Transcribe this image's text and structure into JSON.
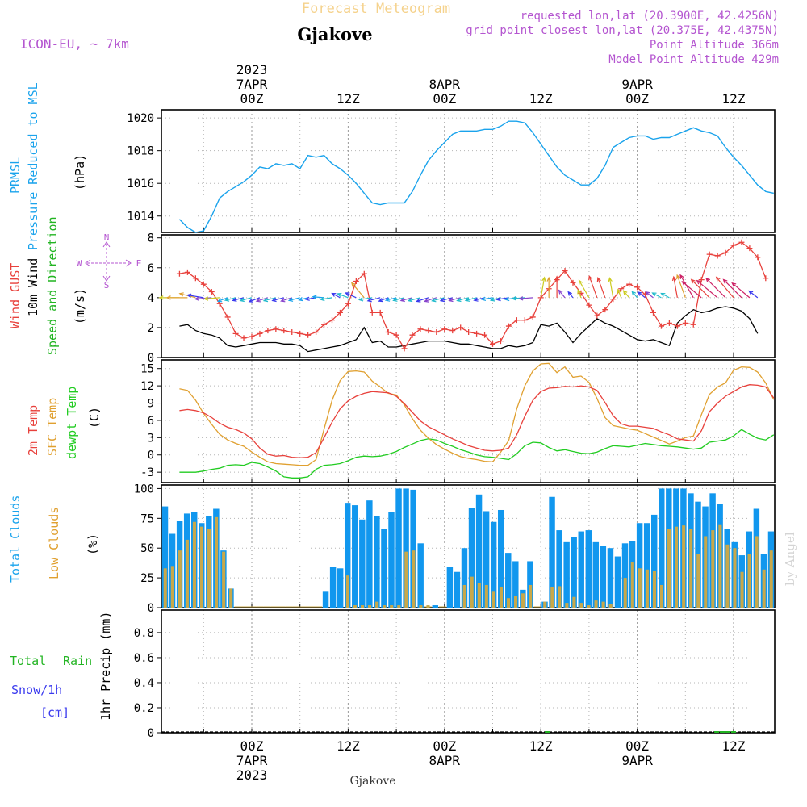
{
  "header": {
    "super_title": "Forecast Meteogram",
    "location": "Gjakove",
    "model": "ICON-EU, ~ 7km",
    "info_lines": [
      "requested lon,lat (20.3900E, 42.4256N)",
      "grid point closest lon,lat (20.375E, 42.4375N)",
      "Point Altitude 366m",
      "Model Point Altitude 429m"
    ],
    "watermark": "by Angel",
    "footer_location": "Gjakove"
  },
  "time_axis": {
    "top_year": "2023",
    "top_labels": [
      {
        "t": 0,
        "lines": [
          "7APR",
          "00Z"
        ]
      },
      {
        "t": 12,
        "lines": [
          "12Z"
        ]
      },
      {
        "t": 24,
        "lines": [
          "8APR",
          "00Z"
        ]
      },
      {
        "t": 36,
        "lines": [
          "12Z"
        ]
      },
      {
        "t": 48,
        "lines": [
          "9APR",
          "00Z"
        ]
      },
      {
        "t": 60,
        "lines": [
          "12Z"
        ]
      }
    ],
    "bottom_labels": [
      {
        "t": 0,
        "lines": [
          "00Z",
          "7APR",
          "2023"
        ]
      },
      {
        "t": 12,
        "lines": [
          "12Z"
        ]
      },
      {
        "t": 24,
        "lines": [
          "00Z",
          "8APR"
        ]
      },
      {
        "t": 36,
        "lines": [
          "12Z"
        ]
      },
      {
        "t": 48,
        "lines": [
          "00Z",
          "9APR"
        ]
      },
      {
        "t": 60,
        "lines": [
          "12Z"
        ]
      }
    ]
  },
  "colors": {
    "prmsl": "#1aa3ec",
    "gust": "#e8413c",
    "wind10": "#000000",
    "wind_dir_label": "#22b422",
    "temp2m": "#e8413c",
    "sfc_temp": "#e0a030",
    "dewpt": "#22cc22",
    "total_clouds": "#1197ee",
    "low_clouds": "#c8a84a",
    "rain": "#22b422",
    "snow": "#3a3aee",
    "purple": "#b455d0",
    "header_orange": "#f5d28c"
  },
  "panel_labels": {
    "prmsl": [
      "PRMSL",
      "Pressure Reduced to MSL"
    ],
    "prmsl_unit": "(hPa)",
    "wind": [
      "Wind GUST",
      "10m Wind",
      "Speed and Direction"
    ],
    "wind_unit": "(m/s)",
    "compass": {
      "n": "N",
      "s": "S",
      "w": "W",
      "e": "E"
    },
    "temp": [
      "2m Temp",
      "SFC Temp",
      "dewpt Temp"
    ],
    "temp_unit": "(C)",
    "clouds": [
      "Total Clouds",
      "Low Clouds"
    ],
    "clouds_unit": "(%)",
    "precip_left": [
      "Total",
      "Rain"
    ],
    "precip_left2": [
      "Snow/1h",
      "[cm]"
    ],
    "precip_unit": "1hr Precip (mm)"
  },
  "chart_data": [
    {
      "type": "line",
      "title": "PRMSL Pressure Reduced to MSL",
      "ylabel": "(hPa)",
      "ylim": [
        1013,
        1020.5
      ],
      "yticks": [
        1014,
        1016,
        1018,
        1020
      ],
      "x_hours": [
        -9,
        -8,
        -7,
        -6,
        -5,
        -4,
        -3,
        -2,
        -1,
        0,
        1,
        2,
        3,
        4,
        5,
        6,
        7,
        8,
        9,
        10,
        11,
        12,
        13,
        14,
        15,
        16,
        17,
        18,
        19,
        20,
        21,
        22,
        23,
        24,
        25,
        26,
        27,
        28,
        29,
        30,
        31,
        32,
        33,
        34,
        35,
        36,
        37,
        38,
        39,
        40,
        41,
        42,
        43,
        44,
        45,
        46,
        47,
        48,
        49,
        50,
        51,
        52,
        53,
        54,
        55,
        56,
        57,
        58,
        59,
        60,
        61,
        62,
        63,
        64,
        65
      ],
      "series": [
        {
          "values": [
            1013.8,
            1013.3,
            1013.0,
            1013.1,
            1014.0,
            1015.1,
            1015.5,
            1015.8,
            1016.1,
            1016.5,
            1017.0,
            1016.9,
            1017.2,
            1017.1,
            1017.2,
            1016.9,
            1017.7,
            1017.6,
            1017.7,
            1017.2,
            1016.9,
            1016.5,
            1016.0,
            1015.4,
            1014.8,
            1014.7,
            1014.8,
            1014.8,
            1014.8,
            1015.5,
            1016.5,
            1017.4,
            1018.0,
            1018.5,
            1019.0,
            1019.2,
            1019.2,
            1019.2,
            1019.3,
            1019.3,
            1019.5,
            1019.8,
            1019.8,
            1019.7,
            1019.1,
            1018.4,
            1017.7,
            1017.0,
            1016.5,
            1016.2,
            1015.9,
            1015.9,
            1016.3,
            1017.1,
            1018.2,
            1018.5,
            1018.8,
            1018.9,
            1018.9,
            1018.7,
            1018.8,
            1018.8,
            1019.0,
            1019.2,
            1019.4,
            1019.2,
            1019.1,
            1018.9,
            1018.2,
            1017.6,
            1017.1,
            1016.5,
            1015.9,
            1015.5,
            1015.4
          ]
        }
      ]
    },
    {
      "type": "line",
      "title": "Wind GUST / 10m Wind Speed and Direction",
      "ylabel": "(m/s)",
      "ylim": [
        0,
        8.2
      ],
      "yticks": [
        0,
        2,
        4,
        6,
        8
      ],
      "series": [
        {
          "name": "Wind GUST",
          "values": [
            5.6,
            5.7,
            5.3,
            4.9,
            4.4,
            3.6,
            2.7,
            1.6,
            1.3,
            1.4,
            1.6,
            1.8,
            1.9,
            1.8,
            1.7,
            1.6,
            1.5,
            1.7,
            2.2,
            2.5,
            3.0,
            3.6,
            5.1,
            5.6,
            3.0,
            3.0,
            1.7,
            1.5,
            0.6,
            1.5,
            1.9,
            1.8,
            1.7,
            1.9,
            1.8,
            2.0,
            1.7,
            1.6,
            1.5,
            0.9,
            1.1,
            2.1,
            2.5,
            2.5,
            2.7,
            4.0,
            4.6,
            5.2,
            5.8,
            5.0,
            4.3,
            3.5,
            2.8,
            3.2,
            3.9,
            4.6,
            4.9,
            4.7,
            4.2,
            3.0,
            2.1,
            2.3,
            2.1,
            2.3,
            2.2,
            5.2,
            6.9,
            6.8,
            7.0,
            7.5,
            7.7,
            7.3,
            6.7,
            5.3
          ]
        },
        {
          "name": "10m Wind",
          "values": [
            2.1,
            2.2,
            1.8,
            1.6,
            1.5,
            1.3,
            0.8,
            0.7,
            0.8,
            0.9,
            1.0,
            1.0,
            1.0,
            0.9,
            0.9,
            0.8,
            0.4,
            0.5,
            0.6,
            0.7,
            0.8,
            1.0,
            1.2,
            2.0,
            1.0,
            1.1,
            0.7,
            0.7,
            0.8,
            0.9,
            1.0,
            1.1,
            1.1,
            1.1,
            1.0,
            0.9,
            0.9,
            0.8,
            0.7,
            0.6,
            0.6,
            0.8,
            0.7,
            0.8,
            1.0,
            2.2,
            2.1,
            2.3,
            1.7,
            1.0,
            1.6,
            2.1,
            2.6,
            2.3,
            2.1,
            1.8,
            1.5,
            1.2,
            1.1,
            1.2,
            1.0,
            0.8,
            2.3,
            2.8,
            3.2,
            3.0,
            3.1,
            3.3,
            3.4,
            3.3,
            3.1,
            2.6,
            1.6
          ]
        }
      ],
      "direction_arrows": {
        "baseline_ms": 4,
        "note": "arrows drawn at the 4 m/s level, colored by speed",
        "angles_deg": [
          180,
          180,
          210,
          200,
          170,
          170,
          140,
          150,
          150,
          150,
          140,
          145,
          150,
          150,
          145,
          150,
          150,
          160,
          190,
          160,
          230,
          220,
          225,
          230,
          160,
          150,
          140,
          150,
          150,
          150,
          150,
          145,
          145,
          150,
          150,
          150,
          150,
          150,
          150,
          160,
          150,
          160,
          160,
          170,
          170,
          280,
          270,
          270,
          250,
          250,
          260,
          240,
          250,
          250,
          260,
          260,
          250,
          250,
          240,
          240,
          230,
          230,
          260,
          250,
          240,
          220,
          225,
          220,
          225,
          230,
          225,
          220,
          240,
          250
        ]
      }
    },
    {
      "type": "line",
      "title": "2m Temp / SFC Temp / dewpt Temp",
      "ylabel": "(C)",
      "ylim": [
        -4.8,
        16.5
      ],
      "yticks": [
        -3,
        0,
        3,
        6,
        9,
        12,
        15
      ],
      "series": [
        {
          "name": "2m Temp",
          "values": [
            7.7,
            7.9,
            7.7,
            7.3,
            6.5,
            5.5,
            4.8,
            4.4,
            3.8,
            2.8,
            1.2,
            0.1,
            -0.2,
            -0.1,
            -0.4,
            -0.5,
            -0.4,
            0.4,
            3.0,
            5.7,
            8.0,
            9.4,
            10.2,
            10.7,
            11.0,
            10.9,
            10.8,
            10.2,
            8.9,
            7.4,
            5.9,
            4.9,
            4.2,
            3.5,
            2.8,
            2.2,
            1.6,
            1.2,
            0.8,
            0.7,
            0.8,
            1.2,
            3.5,
            6.7,
            9.5,
            11.0,
            11.6,
            11.7,
            11.9,
            11.8,
            12.0,
            11.8,
            11.2,
            9.1,
            6.8,
            5.4,
            5.0,
            5.0,
            4.8,
            4.6,
            4.0,
            3.5,
            2.8,
            2.6,
            2.4,
            4.2,
            7.5,
            9.0,
            10.2,
            11.0,
            11.8,
            12.2,
            12.1,
            11.8,
            9.9
          ]
        },
        {
          "name": "SFC Temp",
          "values": [
            11.5,
            11.2,
            9.5,
            7.2,
            5.3,
            3.6,
            2.6,
            2.0,
            1.5,
            0.5,
            -0.4,
            -1.2,
            -1.5,
            -1.6,
            -1.7,
            -1.8,
            -1.8,
            -0.8,
            4.5,
            9.5,
            12.9,
            14.5,
            14.6,
            14.4,
            12.8,
            11.8,
            10.7,
            10.4,
            8.7,
            6.3,
            4.3,
            2.9,
            1.8,
            1.0,
            0.3,
            -0.3,
            -0.6,
            -0.8,
            -1.1,
            -1.2,
            0.5,
            2.5,
            8.0,
            12.0,
            14.6,
            15.8,
            15.9,
            14.3,
            15.3,
            13.5,
            13.7,
            12.6,
            9.8,
            6.5,
            5.1,
            4.8,
            4.5,
            4.3,
            3.7,
            3.1,
            2.5,
            1.9,
            2.4,
            3.0,
            3.3,
            7.0,
            10.5,
            11.8,
            12.5,
            14.7,
            15.3,
            15.2,
            14.4,
            12.5,
            9.6
          ]
        },
        {
          "name": "dewpt Temp",
          "values": [
            -3.0,
            -3.0,
            -3.0,
            -2.8,
            -2.5,
            -2.3,
            -1.8,
            -1.7,
            -1.8,
            -1.3,
            -1.5,
            -2.1,
            -2.8,
            -3.8,
            -4.0,
            -4.0,
            -3.8,
            -2.5,
            -1.8,
            -1.7,
            -1.5,
            -1.0,
            -0.4,
            -0.2,
            -0.3,
            -0.2,
            0.1,
            0.6,
            1.3,
            1.9,
            2.5,
            2.8,
            2.6,
            2.0,
            1.5,
            0.9,
            0.5,
            0.0,
            -0.3,
            -0.4,
            -0.6,
            -0.8,
            0.2,
            1.6,
            2.2,
            2.1,
            1.3,
            0.7,
            0.9,
            0.6,
            0.3,
            0.2,
            0.5,
            1.1,
            1.6,
            1.5,
            1.4,
            1.7,
            2.0,
            1.8,
            1.6,
            1.5,
            1.4,
            1.2,
            1.0,
            1.2,
            2.2,
            2.4,
            2.6,
            3.3,
            4.4,
            3.6,
            2.9,
            2.6,
            3.5
          ]
        }
      ]
    },
    {
      "type": "bar",
      "title": "Total Clouds / Low Clouds",
      "ylabel": "(%)",
      "ylim": [
        0,
        103
      ],
      "yticks": [
        0,
        25,
        50,
        75,
        100
      ],
      "series": [
        {
          "name": "Total Clouds",
          "values": [
            85,
            62,
            73,
            79,
            80,
            71,
            77,
            83,
            48,
            16,
            0,
            0,
            0,
            0,
            0,
            0,
            0,
            0,
            0,
            0,
            0,
            0,
            14,
            34,
            33,
            88,
            86,
            74,
            90,
            77,
            66,
            80,
            100,
            100,
            99,
            54,
            0,
            2,
            0,
            34,
            30,
            50,
            84,
            95,
            81,
            72,
            82,
            46,
            39,
            15,
            39,
            0,
            5,
            93,
            65,
            55,
            59,
            64,
            65,
            55,
            52,
            50,
            43,
            54,
            56,
            71,
            71,
            78,
            100,
            100,
            100,
            100,
            96,
            89,
            85,
            96,
            87,
            66,
            55,
            44,
            64,
            83,
            45,
            64
          ]
        },
        {
          "name": "Low Clouds",
          "values": [
            33,
            35,
            48,
            57,
            72,
            68,
            66,
            76,
            47,
            16,
            0,
            0,
            0,
            0,
            0,
            0,
            0,
            0,
            0,
            0,
            0,
            0,
            0,
            0,
            0,
            27,
            2,
            2,
            2,
            5,
            2,
            2,
            2,
            47,
            48,
            2,
            2,
            0,
            0,
            0,
            0,
            19,
            26,
            21,
            19,
            14,
            17,
            8,
            10,
            12,
            19,
            0,
            5,
            17,
            18,
            4,
            9,
            4,
            2,
            6,
            5,
            3,
            0,
            25,
            38,
            33,
            32,
            31,
            19,
            66,
            68,
            69,
            66,
            45,
            60,
            65,
            70,
            53,
            50,
            30,
            45,
            60,
            32,
            48
          ]
        }
      ]
    },
    {
      "type": "bar",
      "title": "1hr Precip (mm)",
      "ylabel": "1hr Precip (mm)",
      "ylim": [
        0,
        0.98
      ],
      "yticks": [
        0,
        0.2,
        0.4,
        0.6,
        0.8
      ],
      "series": [
        {
          "name": "Total Rain",
          "values": [
            {
              "t": 36.8,
              "v": 0.005
            },
            {
              "t": 57.9,
              "v": 0.008
            },
            {
              "t": 58.6,
              "v": 0.01
            },
            {
              "t": 59.3,
              "v": 0.012
            },
            {
              "t": 60.0,
              "v": 0.006
            }
          ]
        }
      ]
    }
  ]
}
